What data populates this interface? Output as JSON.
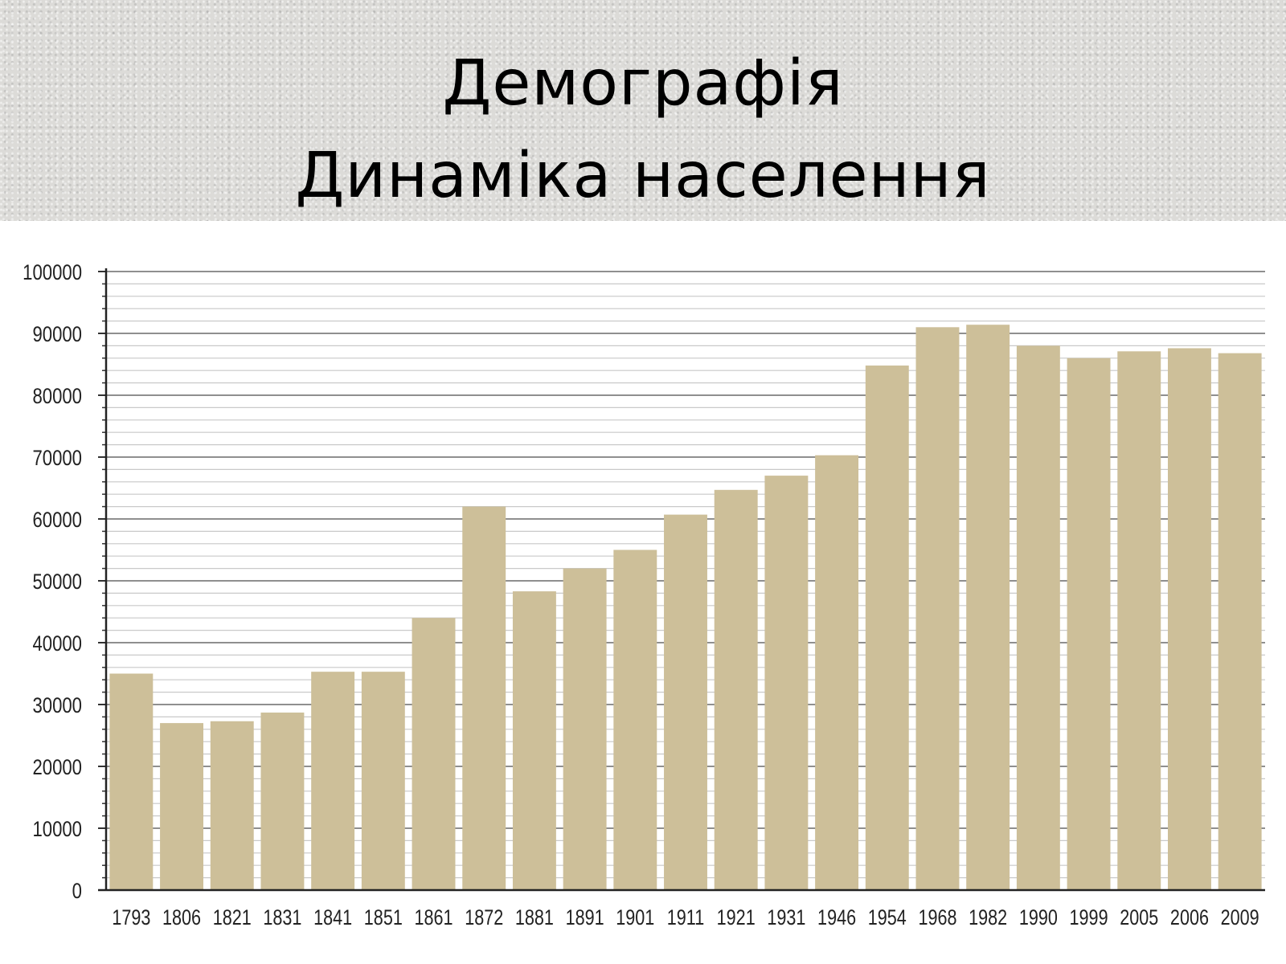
{
  "header": {
    "title": "Демографія",
    "subtitle": "Динаміка населення"
  },
  "chart_data": {
    "type": "bar",
    "title": "",
    "xlabel": "",
    "ylabel": "",
    "ylim": [
      0,
      100000
    ],
    "yticks": [
      "0",
      "10000",
      "20000",
      "30000",
      "40000",
      "50000",
      "60000",
      "70000",
      "80000",
      "90000",
      "100000"
    ],
    "grid": true,
    "legend": "none",
    "bar_color": "#cdbf99",
    "categories": [
      "1793",
      "1806",
      "1821",
      "1831",
      "1841",
      "1851",
      "1861",
      "1872",
      "1881",
      "1891",
      "1901",
      "1911",
      "1921",
      "1931",
      "1946",
      "1954",
      "1968",
      "1982",
      "1990",
      "1999",
      "2005",
      "2006",
      "2009"
    ],
    "values": [
      35000,
      27000,
      27300,
      28700,
      35300,
      35300,
      44000,
      62000,
      48300,
      52000,
      55000,
      60700,
      64700,
      67000,
      70300,
      84800,
      91000,
      91400,
      88000,
      86000,
      87100,
      87600,
      86800
    ]
  }
}
